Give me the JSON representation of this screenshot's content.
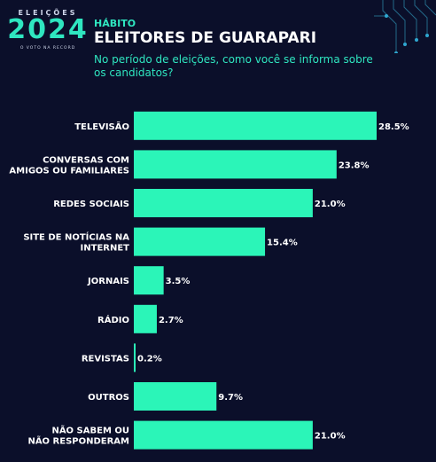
{
  "logo": {
    "top": "ELEIÇÕES",
    "year": "2024",
    "bottom": "O VOTO NA RECORD"
  },
  "header": {
    "kicker": "HÁBITO",
    "title": "ELEITORES DE GUARAPARI",
    "subtitle": "No período de eleições, como você se informa sobre os candidatos?"
  },
  "colors": {
    "background": "#0b0f2a",
    "bar": "#2bf5b8",
    "accent": "#2fe6c0"
  },
  "chart_data": {
    "type": "bar",
    "orientation": "horizontal",
    "categories": [
      [
        "TELEVISÃO"
      ],
      [
        "CONVERSAS COM",
        "AMIGOS OU FAMILIARES"
      ],
      [
        "REDES SOCIAIS"
      ],
      [
        "SITE DE NOTÍCIAS NA",
        "INTERNET"
      ],
      [
        "JORNAIS"
      ],
      [
        "RÁDIO"
      ],
      [
        "REVISTAS"
      ],
      [
        "OUTROS"
      ],
      [
        "NÃO SABEM OU",
        "NÃO RESPONDERAM"
      ]
    ],
    "values": [
      28.5,
      23.8,
      21.0,
      15.4,
      3.5,
      2.7,
      0.2,
      9.7,
      21.0
    ],
    "value_labels": [
      "28.5%",
      "23.8%",
      "21.0%",
      "15.4%",
      "3.5%",
      "2.7%",
      "0.2%",
      "9.7%",
      "21.0%"
    ],
    "xlim": [
      0,
      28.5
    ]
  }
}
